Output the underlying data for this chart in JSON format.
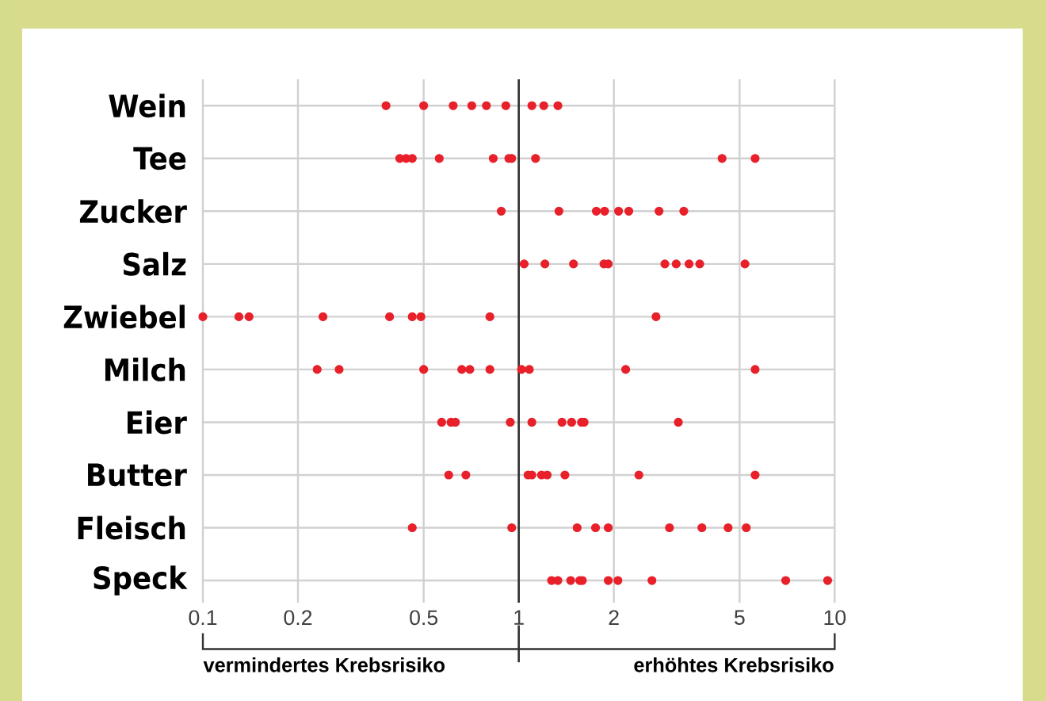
{
  "chart_data": {
    "type": "scatter",
    "orientation": "horizontal",
    "log": "x",
    "grid": true,
    "marker": "circle",
    "categories": [
      "Wein",
      "Tee",
      "Zucker",
      "Salz",
      "Zwiebel",
      "Milch",
      "Eier",
      "Butter",
      "Fleisch",
      "Speck"
    ],
    "xlim": [
      0.1,
      10
    ],
    "xticks": [
      0.1,
      0.2,
      0.5,
      1,
      2,
      5,
      10
    ],
    "series": [
      {
        "color": "#e8202a",
        "x": [
          "Wein",
          "Wein",
          "Wein",
          "Wein",
          "Wein",
          "Wein",
          "Wein",
          "Wein",
          "Wein"
        ],
        "values": [
          0.38,
          0.5,
          0.62,
          0.71,
          0.79,
          0.91,
          1.1,
          1.2,
          1.33
        ]
      },
      {
        "color": "#e8202a",
        "x": [
          "Tee",
          "Tee",
          "Tee",
          "Tee",
          "Tee",
          "Tee",
          "Tee",
          "Tee",
          "Tee",
          "Tee"
        ],
        "values": [
          0.42,
          0.44,
          0.46,
          0.56,
          0.83,
          0.93,
          0.95,
          1.13,
          4.4,
          5.6
        ]
      },
      {
        "color": "#e8202a",
        "x": [
          "Zucker",
          "Zucker",
          "Zucker",
          "Zucker",
          "Zucker",
          "Zucker",
          "Zucker",
          "Zucker"
        ],
        "values": [
          0.88,
          1.34,
          1.76,
          1.87,
          2.07,
          2.23,
          2.78,
          3.33
        ]
      },
      {
        "color": "#e8202a",
        "x": [
          "Salz",
          "Salz",
          "Salz",
          "Salz",
          "Salz",
          "Salz",
          "Salz",
          "Salz",
          "Salz",
          "Salz"
        ],
        "values": [
          1.04,
          1.21,
          1.49,
          1.86,
          1.92,
          2.9,
          3.15,
          3.46,
          3.74,
          5.2
        ]
      },
      {
        "color": "#e8202a",
        "x": [
          "Zwiebel",
          "Zwiebel",
          "Zwiebel",
          "Zwiebel",
          "Zwiebel",
          "Zwiebel",
          "Zwiebel",
          "Zwiebel",
          "Zwiebel"
        ],
        "values": [
          0.1,
          0.13,
          0.14,
          0.24,
          0.39,
          0.46,
          0.49,
          0.81,
          2.72
        ]
      },
      {
        "color": "#e8202a",
        "x": [
          "Milch",
          "Milch",
          "Milch",
          "Milch",
          "Milch",
          "Milch",
          "Milch",
          "Milch",
          "Milch",
          "Milch"
        ],
        "values": [
          0.23,
          0.27,
          0.5,
          0.66,
          0.7,
          0.81,
          1.02,
          1.08,
          2.18,
          5.6
        ]
      },
      {
        "color": "#e8202a",
        "x": [
          "Eier",
          "Eier",
          "Eier",
          "Eier",
          "Eier",
          "Eier",
          "Eier",
          "Eier",
          "Eier",
          "Eier"
        ],
        "values": [
          0.57,
          0.61,
          0.63,
          0.94,
          1.1,
          1.37,
          1.47,
          1.58,
          1.61,
          3.2
        ]
      },
      {
        "color": "#e8202a",
        "x": [
          "Butter",
          "Butter",
          "Butter",
          "Butter",
          "Butter",
          "Butter",
          "Butter",
          "Butter",
          "Butter"
        ],
        "values": [
          0.6,
          0.68,
          1.07,
          1.1,
          1.18,
          1.23,
          1.4,
          2.4,
          5.6
        ]
      },
      {
        "color": "#e8202a",
        "x": [
          "Fleisch",
          "Fleisch",
          "Fleisch",
          "Fleisch",
          "Fleisch",
          "Fleisch",
          "Fleisch",
          "Fleisch",
          "Fleisch"
        ],
        "values": [
          0.46,
          0.95,
          1.53,
          1.75,
          1.92,
          3.0,
          3.8,
          4.6,
          5.25
        ]
      },
      {
        "color": "#e8202a",
        "x": [
          "Speck",
          "Speck",
          "Speck",
          "Speck",
          "Speck",
          "Speck",
          "Speck",
          "Speck",
          "Speck",
          "Speck"
        ],
        "values": [
          1.27,
          1.33,
          1.46,
          1.56,
          1.59,
          1.92,
          2.06,
          2.64,
          7.0,
          9.5
        ]
      }
    ],
    "ref_lines": [
      {
        "axis": "x",
        "value": 1,
        "color": "#333333"
      }
    ],
    "annotations": [
      "vermindertes Krebsrisiko",
      "erhöhtes Krebsrisiko"
    ]
  }
}
